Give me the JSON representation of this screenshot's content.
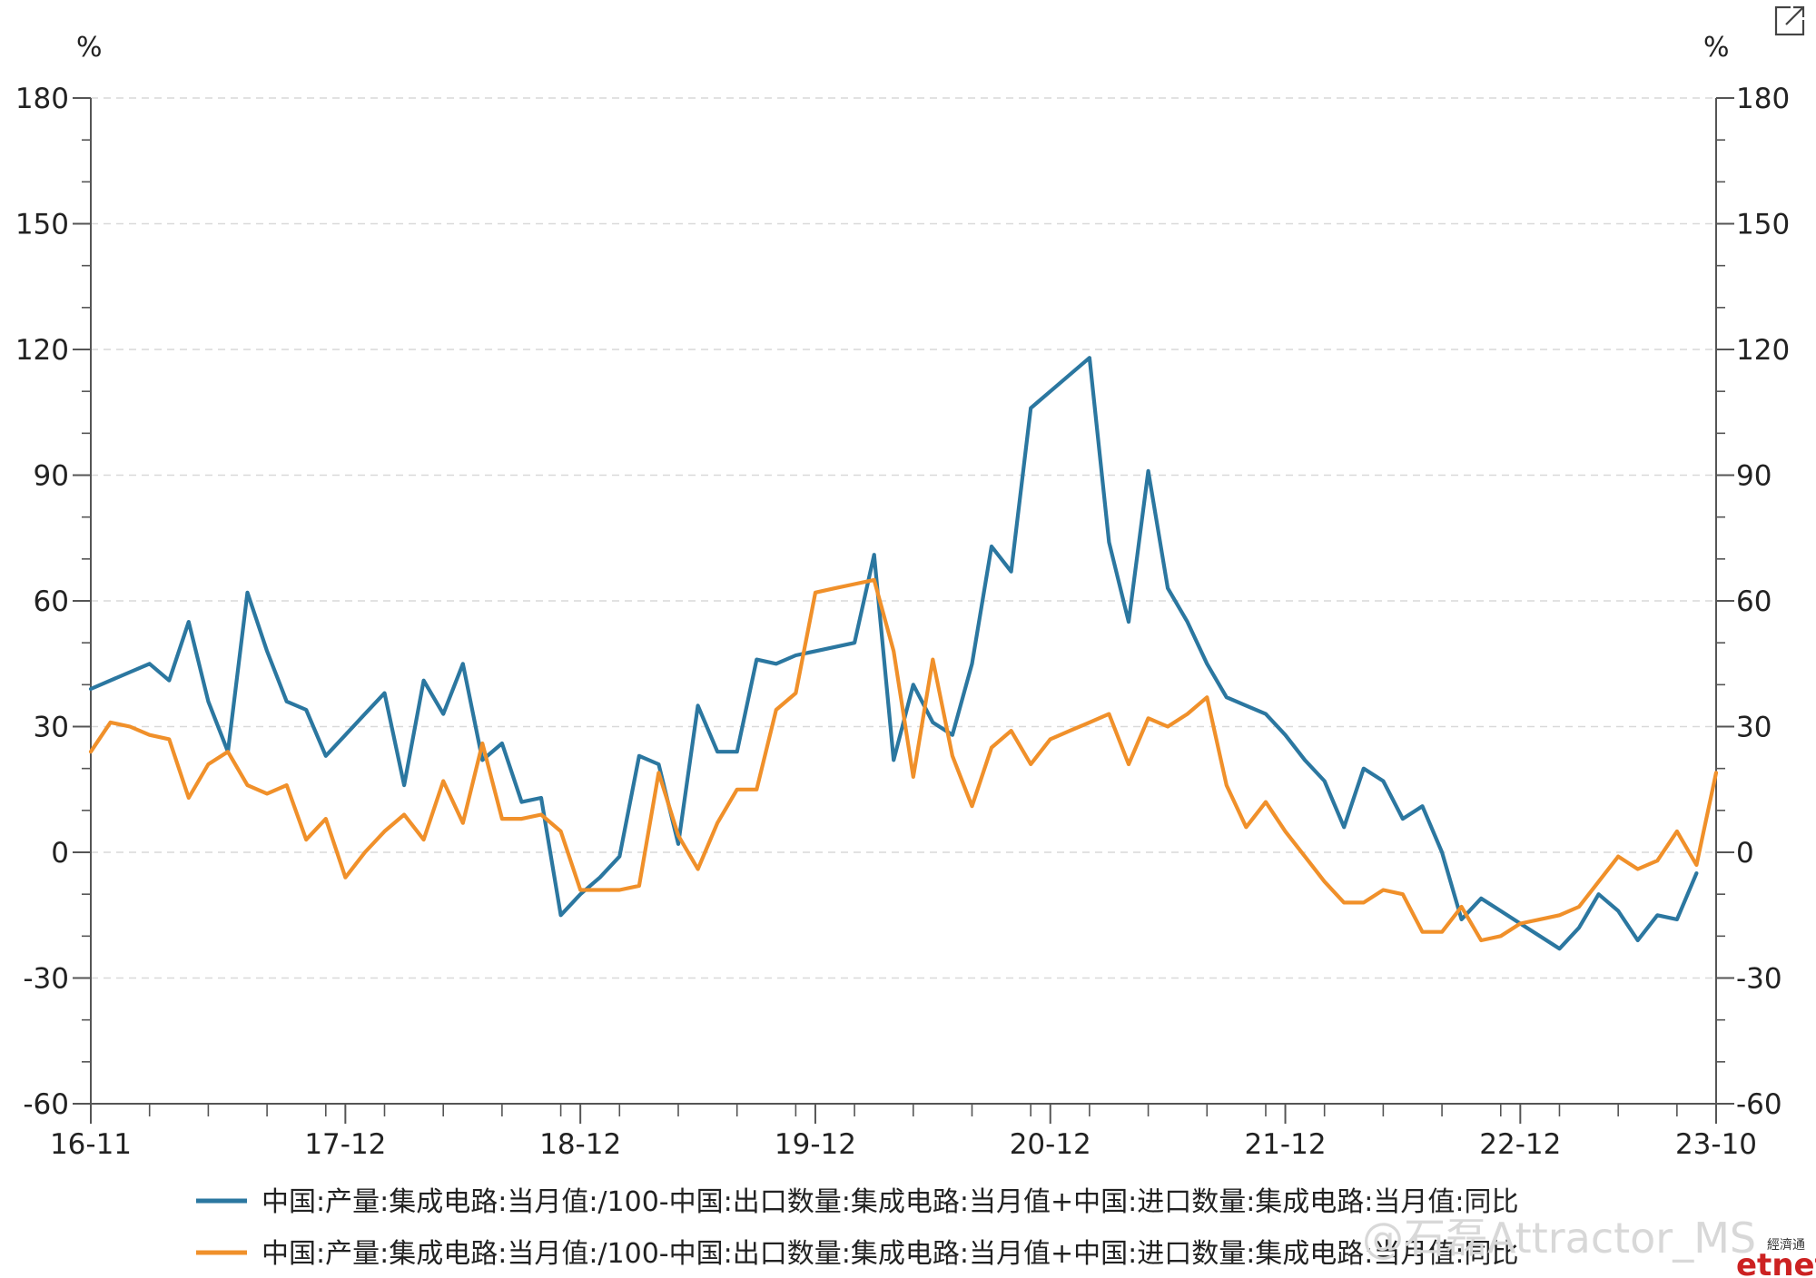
{
  "chart_data": {
    "type": "line",
    "unit_left": "%",
    "unit_right": "%",
    "ylim": [
      -60,
      180
    ],
    "y_ticks": [
      -60,
      -30,
      0,
      30,
      60,
      90,
      120,
      150,
      180
    ],
    "y_tick_labels": [
      "-60",
      "-30",
      "0",
      "30",
      "60",
      "90",
      "120",
      "150",
      "180"
    ],
    "x_tick_labels": [
      "16-11",
      "17-12",
      "18-12",
      "19-12",
      "20-12",
      "21-12",
      "22-12",
      "23-10"
    ],
    "x_tick_positions": [
      0,
      13,
      25,
      37,
      49,
      61,
      73,
      83
    ],
    "grid": true,
    "colors": {
      "series1": "#2b77a0",
      "series2": "#f0902a"
    },
    "series": [
      {
        "name": "中国:产量:集成电路:当月值:/100-中国:出口数量:集成电路:当月值+中国:进口数量:集成电路:当月值:同比",
        "points": [
          [
            0,
            39
          ],
          [
            1,
            41
          ],
          [
            2,
            43
          ],
          [
            3,
            45
          ],
          [
            4,
            41
          ],
          [
            5,
            55
          ],
          [
            6,
            36
          ],
          [
            7,
            24
          ],
          [
            8,
            62
          ],
          [
            9,
            48
          ],
          [
            10,
            36
          ],
          [
            11,
            34
          ],
          [
            12,
            23
          ],
          [
            13,
            28
          ],
          [
            14,
            33
          ],
          [
            15,
            38
          ],
          [
            16,
            16
          ],
          [
            17,
            41
          ],
          [
            18,
            33
          ],
          [
            19,
            45
          ],
          [
            20,
            22
          ],
          [
            21,
            26
          ],
          [
            22,
            12
          ],
          [
            23,
            13
          ],
          [
            24,
            -15
          ],
          [
            25,
            -10
          ],
          [
            26,
            -6
          ],
          [
            27,
            -1
          ],
          [
            28,
            23
          ],
          [
            29,
            21
          ],
          [
            30,
            2
          ],
          [
            31,
            35
          ],
          [
            32,
            24
          ],
          [
            33,
            24
          ],
          [
            34,
            46
          ],
          [
            35,
            45
          ],
          [
            36,
            47
          ],
          [
            37,
            48
          ],
          [
            38,
            49
          ],
          [
            39,
            50
          ],
          [
            40,
            71
          ],
          [
            41,
            22
          ],
          [
            42,
            40
          ],
          [
            43,
            31
          ],
          [
            44,
            28
          ],
          [
            45,
            45
          ],
          [
            46,
            73
          ],
          [
            47,
            67
          ],
          [
            48,
            106
          ],
          [
            49,
            110
          ],
          [
            50,
            114
          ],
          [
            51,
            118
          ],
          [
            52,
            74
          ],
          [
            53,
            55
          ],
          [
            54,
            91
          ],
          [
            55,
            63
          ],
          [
            56,
            55
          ],
          [
            57,
            45
          ],
          [
            58,
            37
          ],
          [
            59,
            35
          ],
          [
            60,
            33
          ],
          [
            61,
            28
          ],
          [
            62,
            22
          ],
          [
            63,
            17
          ],
          [
            64,
            6
          ],
          [
            65,
            20
          ],
          [
            66,
            17
          ],
          [
            67,
            8
          ],
          [
            68,
            11
          ],
          [
            69,
            0
          ],
          [
            70,
            -16
          ],
          [
            71,
            -11
          ],
          [
            72,
            -14
          ],
          [
            73,
            -17
          ],
          [
            74,
            -20
          ],
          [
            75,
            -23
          ],
          [
            76,
            -18
          ],
          [
            77,
            -10
          ],
          [
            78,
            -14
          ],
          [
            79,
            -21
          ],
          [
            80,
            -15
          ],
          [
            81,
            -16
          ],
          [
            82,
            -5
          ]
        ]
      },
      {
        "name": "中国:产量:集成电路:当月值:/100-中国:出口数量:集成电路:当月值+中国:进口数量:集成电路:当月值:同比",
        "points": [
          [
            0,
            24
          ],
          [
            1,
            31
          ],
          [
            2,
            30
          ],
          [
            3,
            28
          ],
          [
            4,
            27
          ],
          [
            5,
            13
          ],
          [
            6,
            21
          ],
          [
            7,
            24
          ],
          [
            8,
            16
          ],
          [
            9,
            14
          ],
          [
            10,
            16
          ],
          [
            11,
            3
          ],
          [
            12,
            8
          ],
          [
            13,
            -6
          ],
          [
            14,
            0
          ],
          [
            15,
            5
          ],
          [
            16,
            9
          ],
          [
            17,
            3
          ],
          [
            18,
            17
          ],
          [
            19,
            7
          ],
          [
            20,
            26
          ],
          [
            21,
            8
          ],
          [
            22,
            8
          ],
          [
            23,
            9
          ],
          [
            24,
            5
          ],
          [
            25,
            -9
          ],
          [
            26,
            -9
          ],
          [
            27,
            -9
          ],
          [
            28,
            -8
          ],
          [
            29,
            19
          ],
          [
            30,
            4
          ],
          [
            31,
            -4
          ],
          [
            32,
            7
          ],
          [
            33,
            15
          ],
          [
            34,
            15
          ],
          [
            35,
            34
          ],
          [
            36,
            38
          ],
          [
            37,
            62
          ],
          [
            38,
            63
          ],
          [
            39,
            64
          ],
          [
            40,
            65
          ],
          [
            41,
            48
          ],
          [
            42,
            18
          ],
          [
            43,
            46
          ],
          [
            44,
            23
          ],
          [
            45,
            11
          ],
          [
            46,
            25
          ],
          [
            47,
            29
          ],
          [
            48,
            21
          ],
          [
            49,
            27
          ],
          [
            50,
            29
          ],
          [
            51,
            31
          ],
          [
            52,
            33
          ],
          [
            53,
            21
          ],
          [
            54,
            32
          ],
          [
            55,
            30
          ],
          [
            56,
            33
          ],
          [
            57,
            37
          ],
          [
            58,
            16
          ],
          [
            59,
            6
          ],
          [
            60,
            12
          ],
          [
            61,
            5
          ],
          [
            62,
            -1
          ],
          [
            63,
            -7
          ],
          [
            64,
            -12
          ],
          [
            65,
            -12
          ],
          [
            66,
            -9
          ],
          [
            67,
            -10
          ],
          [
            68,
            -19
          ],
          [
            69,
            -19
          ],
          [
            70,
            -13
          ],
          [
            71,
            -21
          ],
          [
            72,
            -20
          ],
          [
            73,
            -17
          ],
          [
            74,
            -16
          ],
          [
            75,
            -15
          ],
          [
            76,
            -13
          ],
          [
            77,
            -7
          ],
          [
            78,
            -1
          ],
          [
            79,
            -4
          ],
          [
            80,
            -2
          ],
          [
            81,
            5
          ],
          [
            82,
            -3
          ],
          [
            83,
            19
          ]
        ]
      }
    ]
  },
  "watermark": "@石磊Attractor_MS",
  "brand": {
    "small": "經濟通",
    "big": "etnet"
  },
  "icons": {
    "expand": "external-link-icon"
  }
}
